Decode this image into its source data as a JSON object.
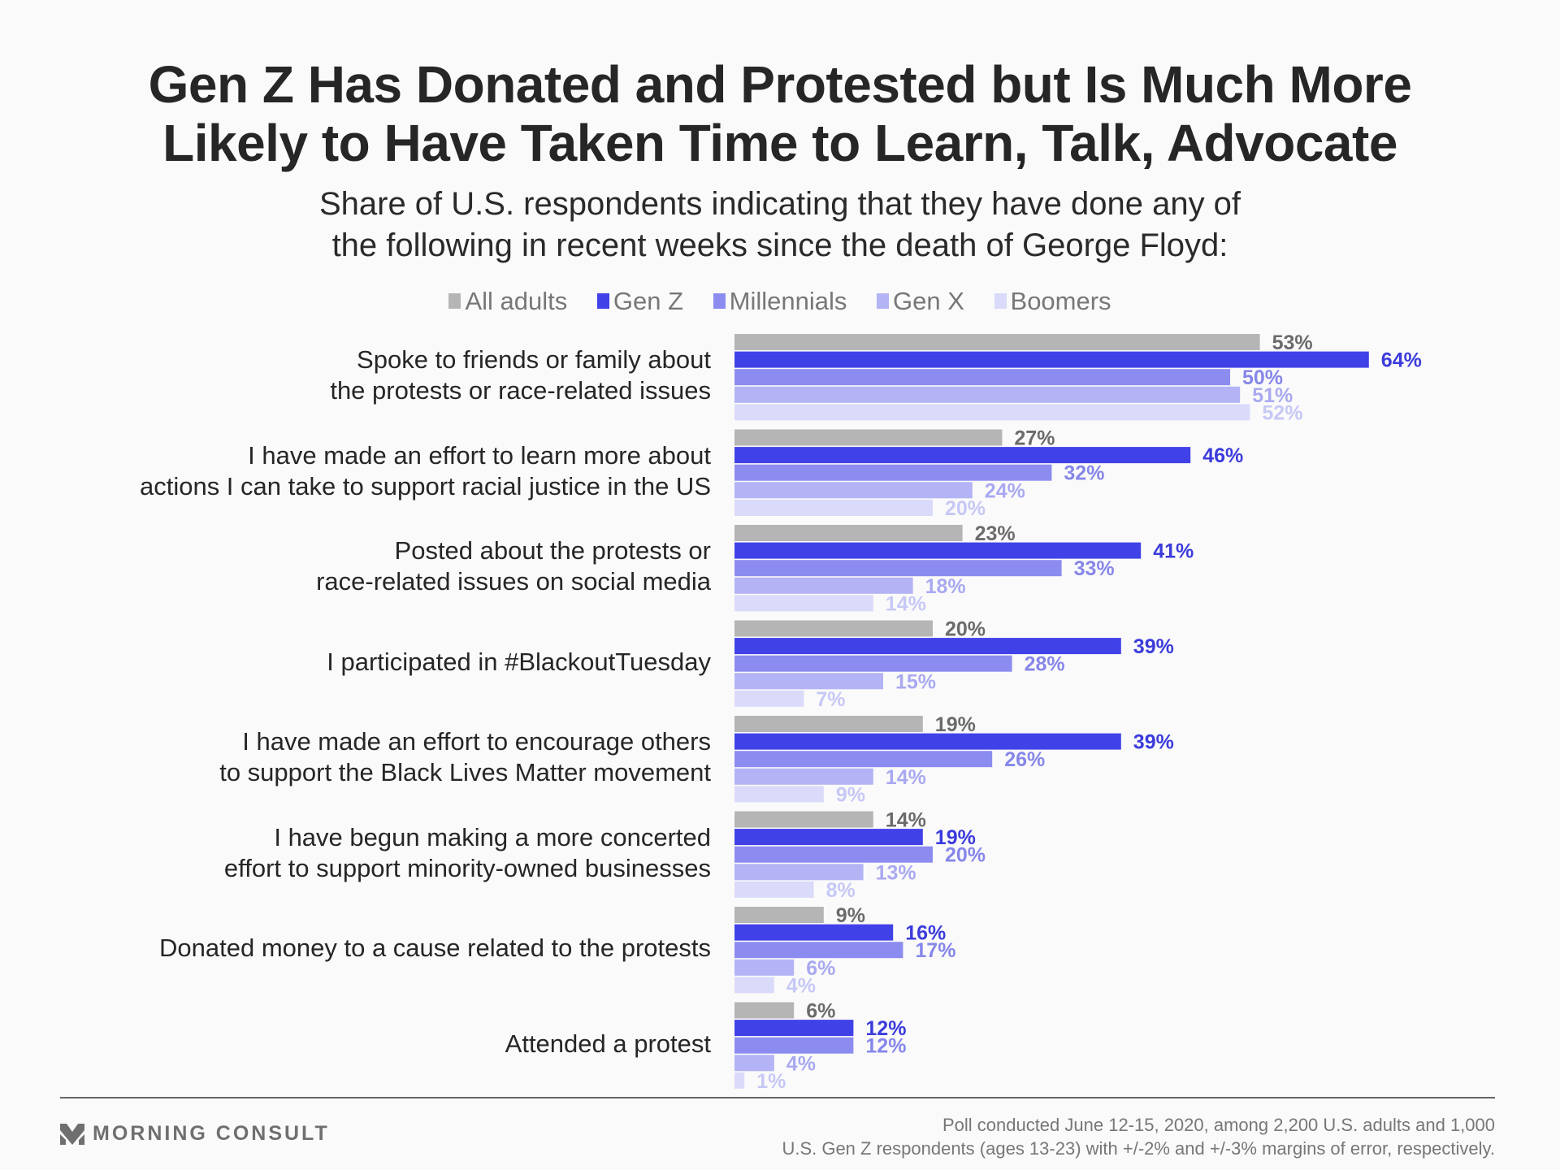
{
  "chart_data": {
    "type": "bar",
    "orientation": "horizontal",
    "title": "Gen Z Has Donated and Protested but Is Much More Likely to Have Taken Time to Learn, Talk, Advocate",
    "title_lines": [
      "Gen Z Has Donated and Protested but Is Much More",
      "Likely to Have Taken Time to Learn, Talk, Advocate"
    ],
    "subtitle_lines": [
      "Share of U.S. respondents indicating that they have done any of",
      "the following in recent weeks since the death of George Floyd:"
    ],
    "xlabel": "",
    "ylabel": "",
    "xlim": [
      0,
      70
    ],
    "grid": false,
    "legend_position": "top-center",
    "value_suffix": "%",
    "categories": [
      [
        "Spoke to friends or family about",
        "the protests or race-related issues"
      ],
      [
        "I have made an effort to learn more about",
        "actions I can take to support racial justice in the US"
      ],
      [
        "Posted about the protests or",
        "race-related issues on social media"
      ],
      [
        "I participated in #BlackoutTuesday"
      ],
      [
        "I have made an effort to encourage others",
        "to support the Black Lives Matter movement"
      ],
      [
        "I have begun making a more concerted",
        "effort to support minority-owned businesses"
      ],
      [
        "Donated money to a cause related to the protests"
      ],
      [
        "Attended a protest"
      ]
    ],
    "series": [
      {
        "name": "All adults",
        "color": "#b5b5b5",
        "label_color": "#6b6b6b",
        "values": [
          53,
          27,
          23,
          20,
          19,
          14,
          9,
          6
        ]
      },
      {
        "name": "Gen Z",
        "color": "#4141e8",
        "label_color": "#3b3bdc",
        "values": [
          64,
          46,
          41,
          39,
          39,
          19,
          16,
          12
        ]
      },
      {
        "name": "Millennials",
        "color": "#8c8cf0",
        "label_color": "#8686ea",
        "values": [
          50,
          32,
          33,
          28,
          26,
          20,
          17,
          12
        ]
      },
      {
        "name": "Gen X",
        "color": "#b3b3f5",
        "label_color": "#a9a9f1",
        "values": [
          51,
          24,
          18,
          15,
          14,
          13,
          6,
          4
        ]
      },
      {
        "name": "Boomers",
        "color": "#dadafa",
        "label_color": "#c6c8f6",
        "values": [
          52,
          20,
          14,
          7,
          9,
          8,
          4,
          1
        ]
      }
    ]
  },
  "footer": {
    "brand": "MORNING CONSULT",
    "note_lines": [
      "Poll conducted June 12-15, 2020, among 2,200 U.S. adults and 1,000",
      "U.S. Gen Z respondents (ages 13-23) with +/-2% and +/-3% margins of error, respectively."
    ]
  }
}
